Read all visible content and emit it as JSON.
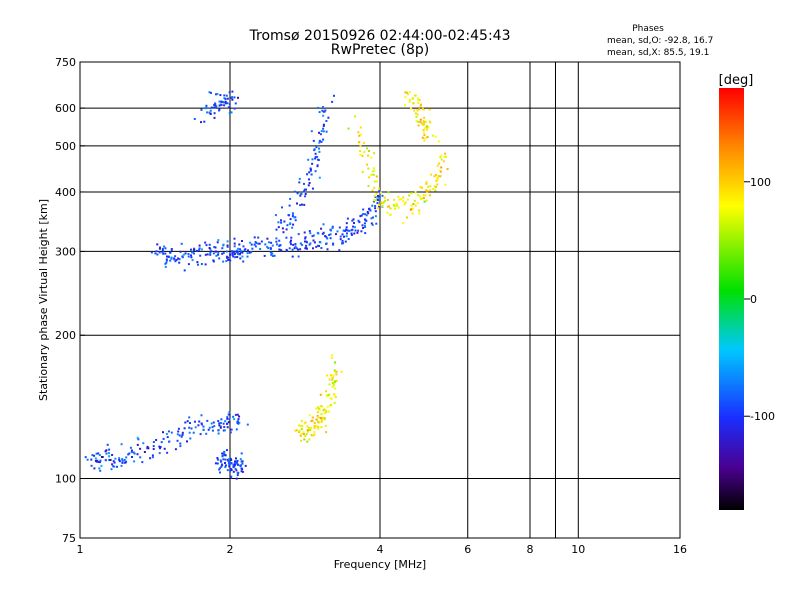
{
  "chart_data": {
    "type": "scatter",
    "title": "Tromsø 20150926 02:44:00-02:45:43",
    "subtitle": "RwPretec (8p)",
    "xlabel": "Frequency [MHz]",
    "ylabel": "Stationary phase Virtual Height [km]",
    "x_scale": "log",
    "y_scale": "log",
    "xlim": [
      1,
      16
    ],
    "ylim": [
      75,
      750
    ],
    "x_ticks": [
      1,
      2,
      4,
      6,
      8,
      10,
      16
    ],
    "x_gridlines": [
      2,
      4,
      6,
      8,
      9,
      10
    ],
    "y_ticks": [
      75,
      100,
      200,
      300,
      400,
      500,
      600,
      750
    ],
    "grid": true,
    "phase_stats": {
      "heading": "Phases",
      "o_line": "mean, sd,O: -92.8, 16.7",
      "x_line": "mean, sd,X:  85.5, 19.1"
    },
    "colorbar": {
      "label": "[deg]",
      "range": [
        -180,
        180
      ],
      "ticks": [
        100,
        0,
        -100
      ]
    },
    "series": [
      {
        "name": "O",
        "phase_mean_deg": -92.8,
        "phase_sd_deg": 16.7,
        "traces": [
          {
            "f": [
              1.05,
              1.1,
              1.18,
              1.28,
              1.4,
              1.55,
              1.7,
              1.85,
              2.0,
              2.1
            ],
            "h": [
              112,
              110,
              110,
              113,
              118,
              124,
              129,
              131,
              132,
              133
            ]
          },
          {
            "f": [
              1.42,
              1.5,
              1.6,
              1.72,
              1.85,
              1.95,
              2.05,
              2.12
            ],
            "h": [
              300,
              298,
              296,
              297,
              299,
              301,
              302,
              304
            ]
          },
          {
            "f": [
              2.1,
              2.3,
              2.5,
              2.7,
              2.9,
              3.1,
              3.3,
              3.5,
              3.7,
              3.9,
              4.05
            ],
            "h": [
              305,
              306,
              308,
              311,
              315,
              320,
              327,
              336,
              350,
              370,
              400
            ]
          },
          {
            "f": [
              2.5,
              2.65,
              2.8,
              2.95,
              3.05,
              3.1
            ],
            "h": [
              330,
              360,
              400,
              460,
              530,
              620
            ]
          },
          {
            "f": [
              1.75,
              1.85,
              1.95,
              2.05
            ],
            "h": [
              600,
              610,
              620,
              620
            ]
          },
          {
            "f": [
              1.9,
              1.95,
              2.0,
              2.05,
              2.1
            ],
            "h": [
              109,
              109,
              108,
              108,
              108
            ]
          }
        ]
      },
      {
        "name": "X",
        "phase_mean_deg": 85.5,
        "phase_sd_deg": 19.1,
        "traces": [
          {
            "f": [
              2.75,
              2.85,
              2.95,
              3.05,
              3.12,
              3.18,
              3.22
            ],
            "h": [
              125,
              127,
              130,
              136,
              145,
              158,
              175
            ]
          },
          {
            "f": [
              3.6,
              3.8,
              4.0,
              4.3,
              4.6,
              4.9,
              5.2,
              5.4
            ],
            "h": [
              560,
              450,
              385,
              370,
              380,
              400,
              430,
              470
            ]
          },
          {
            "f": [
              4.6,
              4.75,
              4.9,
              5.0
            ],
            "h": [
              640,
              600,
              560,
              520
            ]
          }
        ]
      }
    ]
  }
}
